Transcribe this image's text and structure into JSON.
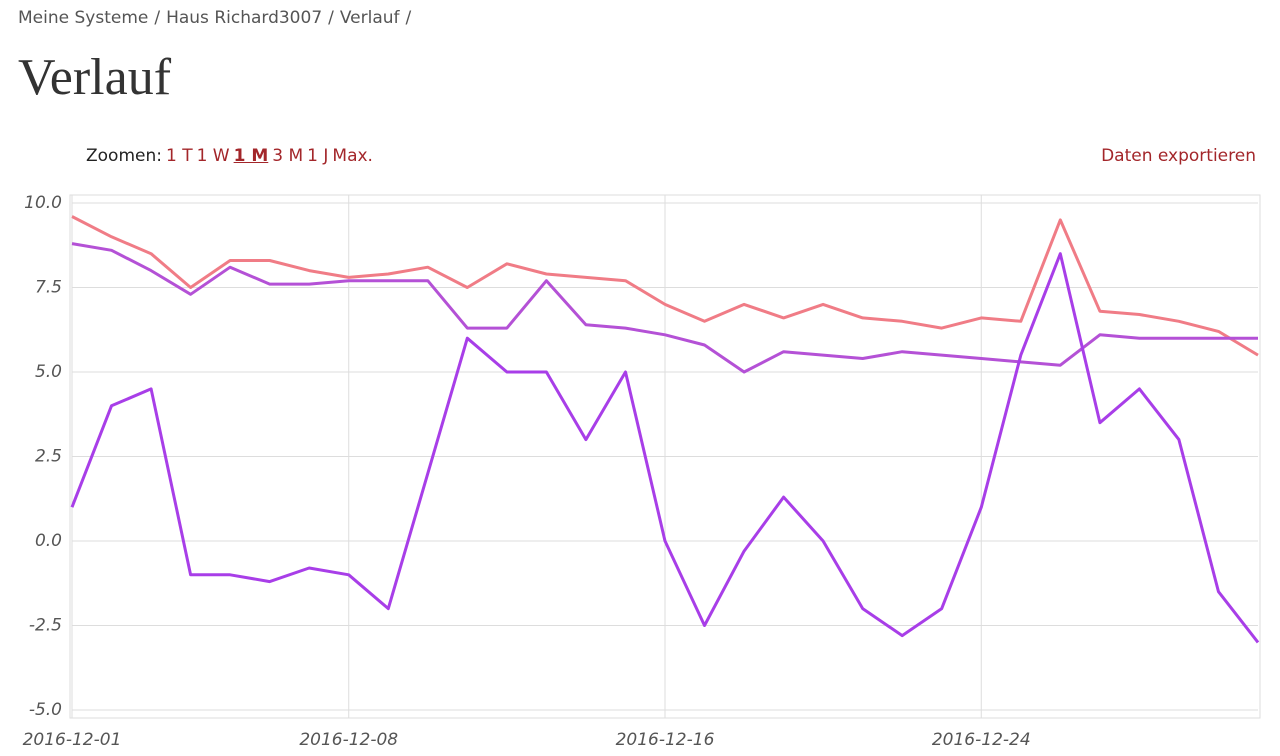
{
  "breadcrumb": {
    "items": [
      "Meine Systeme",
      "Haus Richard3007",
      "Verlauf"
    ],
    "separator": "/"
  },
  "header": {
    "title": "Verlauf"
  },
  "toolbar": {
    "zoom_label": "Zoomen:",
    "zoom_options": [
      "1 T",
      "1 W",
      "1 M",
      "3 M",
      "1 J",
      "Max."
    ],
    "active_zoom": 2,
    "export": "Daten exportieren"
  },
  "chart_data": {
    "type": "line",
    "x": [
      "2016-12-01",
      "2016-12-02",
      "2016-12-03",
      "2016-12-04",
      "2016-12-05",
      "2016-12-06",
      "2016-12-07",
      "2016-12-08",
      "2016-12-09",
      "2016-12-10",
      "2016-12-11",
      "2016-12-12",
      "2016-12-13",
      "2016-12-14",
      "2016-12-15",
      "2016-12-16",
      "2016-12-17",
      "2016-12-18",
      "2016-12-19",
      "2016-12-20",
      "2016-12-21",
      "2016-12-22",
      "2016-12-23",
      "2016-12-24",
      "2016-12-25",
      "2016-12-26",
      "2016-12-27",
      "2016-12-28",
      "2016-12-29",
      "2016-12-30",
      "2016-12-31"
    ],
    "series": [
      {
        "color": "#f07c86",
        "values": [
          9.6,
          9.0,
          8.5,
          7.5,
          8.3,
          8.3,
          8.0,
          7.8,
          7.9,
          8.1,
          7.5,
          8.2,
          7.9,
          7.8,
          7.7,
          7.0,
          6.5,
          7.0,
          6.6,
          7.0,
          6.6,
          6.5,
          6.3,
          6.6,
          6.5,
          9.5,
          6.8,
          6.7,
          6.5,
          6.2,
          5.5
        ]
      },
      {
        "color": "#b451d6",
        "values": [
          8.8,
          8.6,
          8.0,
          7.3,
          8.1,
          7.6,
          7.6,
          7.7,
          7.7,
          7.7,
          6.3,
          6.3,
          7.7,
          6.4,
          6.3,
          6.1,
          5.8,
          5.0,
          5.6,
          5.5,
          5.4,
          5.6,
          5.5,
          5.4,
          5.3,
          5.2,
          6.1,
          6.0,
          6.0,
          6.0,
          6.0
        ]
      },
      {
        "color": "#a83ee8",
        "values": [
          1.0,
          4.0,
          4.5,
          -1.0,
          -1.0,
          -1.2,
          -0.8,
          -1.0,
          -2.0,
          2.0,
          6.0,
          5.0,
          5.0,
          3.0,
          5.0,
          0.0,
          -2.5,
          -0.3,
          1.3,
          0.0,
          -2.0,
          -2.8,
          -2.0,
          1.0,
          5.5,
          8.5,
          3.5,
          4.5,
          3.0,
          -1.5,
          -3.0
        ]
      }
    ],
    "xlim": [
      "2016-12-01",
      "2016-12-31"
    ],
    "xticks": [
      "2016-12-01",
      "2016-12-08",
      "2016-12-16",
      "2016-12-24"
    ],
    "ylim": [
      -5,
      10
    ],
    "yticks": [
      {
        "value": -5,
        "label": "-5.0"
      },
      -2.5,
      {
        "value": 0,
        "label": "0.0"
      },
      2.5,
      {
        "value": 5,
        "label": "5.0"
      },
      7.5,
      {
        "value": 10,
        "label": "10.0"
      }
    ],
    "grid": true
  }
}
